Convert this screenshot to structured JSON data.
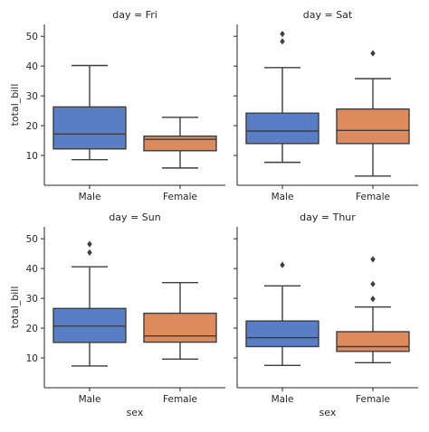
{
  "chart_data": {
    "type": "box",
    "xlabel": "sex",
    "ylabel": "total_bill",
    "categories": [
      "Male",
      "Female"
    ],
    "ylim": [
      0,
      54
    ],
    "yticks": [
      10,
      20,
      30,
      40,
      50
    ],
    "sharey": true,
    "colors": {
      "Male": "#5a7ec5",
      "Female": "#dd8a5c"
    },
    "line_color": "#3d3d3d",
    "panels": [
      {
        "title": "day = Fri",
        "boxes": [
          {
            "category": "Male",
            "whisker_low": 8.6,
            "q1": 12.2,
            "median": 17.2,
            "q3": 26.3,
            "whisker_high": 40.2,
            "outliers": []
          },
          {
            "category": "Female",
            "whisker_low": 5.8,
            "q1": 11.6,
            "median": 15.4,
            "q3": 16.5,
            "whisker_high": 22.8,
            "outliers": []
          }
        ]
      },
      {
        "title": "day = Sat",
        "boxes": [
          {
            "category": "Male",
            "whisker_low": 7.7,
            "q1": 14.0,
            "median": 18.2,
            "q3": 24.2,
            "whisker_high": 39.5,
            "outliers": [
              48.3,
              50.8
            ]
          },
          {
            "category": "Female",
            "whisker_low": 3.1,
            "q1": 14.0,
            "median": 18.4,
            "q3": 25.6,
            "whisker_high": 35.8,
            "outliers": [
              44.3
            ]
          }
        ]
      },
      {
        "title": "day = Sun",
        "boxes": [
          {
            "category": "Male",
            "whisker_low": 7.3,
            "q1": 15.2,
            "median": 20.7,
            "q3": 26.6,
            "whisker_high": 40.6,
            "outliers": [
              45.4,
              48.2
            ]
          },
          {
            "category": "Female",
            "whisker_low": 9.6,
            "q1": 15.3,
            "median": 17.4,
            "q3": 25.0,
            "whisker_high": 35.3,
            "outliers": []
          }
        ]
      },
      {
        "title": "day = Thur",
        "boxes": [
          {
            "category": "Male",
            "whisker_low": 7.5,
            "q1": 13.8,
            "median": 16.8,
            "q3": 22.4,
            "whisker_high": 34.2,
            "outliers": [
              41.2
            ]
          },
          {
            "category": "Female",
            "whisker_low": 8.4,
            "q1": 12.2,
            "median": 13.8,
            "q3": 18.8,
            "whisker_high": 27.1,
            "outliers": [
              29.8,
              34.8,
              43.1
            ]
          }
        ]
      }
    ]
  }
}
